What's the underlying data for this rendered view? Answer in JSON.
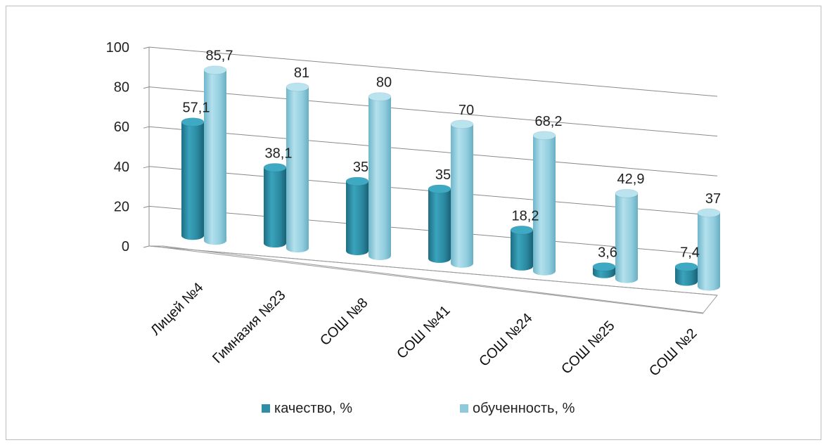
{
  "chart_data": {
    "type": "bar",
    "title": "",
    "xlabel": "",
    "ylabel": "",
    "ylim": [
      0,
      100
    ],
    "yticks": [
      0,
      20,
      40,
      60,
      80,
      100
    ],
    "grid": true,
    "legend_position": "bottom",
    "categories": [
      "Лицей №4",
      "Гимназия №23",
      "СОШ №8",
      "СОШ №41",
      "СОШ №24",
      "СОШ №25",
      "СОШ №2"
    ],
    "series": [
      {
        "name": "качество, %",
        "color": "#2f8ea6",
        "values": [
          57.1,
          38.1,
          35,
          35,
          18.2,
          3.6,
          7.4
        ],
        "labels": [
          "57,1",
          "38,1",
          "35",
          "35",
          "18,2",
          "3,6",
          "7,4"
        ]
      },
      {
        "name": "обученность, %",
        "color": "#8fcadc",
        "values": [
          85.7,
          81,
          80,
          70,
          68.2,
          42.9,
          37
        ],
        "labels": [
          "85,7",
          "81",
          "80",
          "70",
          "68,2",
          "42,9",
          "37"
        ]
      }
    ]
  }
}
